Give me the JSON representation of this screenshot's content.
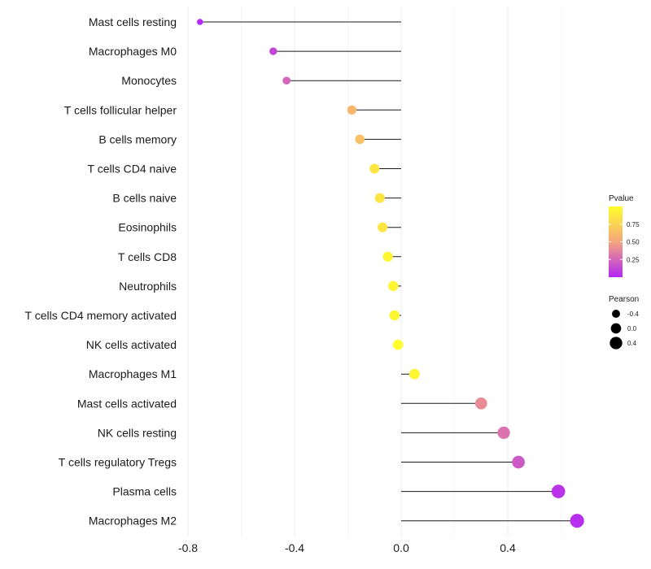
{
  "chart_data": {
    "type": "lollipop",
    "title": "",
    "xlabel": "",
    "ylabel": "",
    "xlim": [
      -0.8,
      0.65
    ],
    "x_ticks": [
      -0.8,
      -0.4,
      0.0,
      0.4
    ],
    "x_tick_labels": [
      "-0.8",
      "-0.4",
      "0.0",
      "0.4"
    ],
    "categories": [
      "Mast cells resting",
      "Macrophages M0",
      "Monocytes",
      "T cells follicular helper",
      "B cells memory",
      "T cells CD4 naive",
      "B cells naive",
      "Eosinophils",
      "T cells CD8",
      "Neutrophils",
      "T cells CD4 memory activated",
      "NK cells activated",
      "Macrophages M1",
      "Mast cells activated",
      "NK cells resting",
      "T cells regulatory  Tregs",
      "Plasma cells",
      "Macrophages M2"
    ],
    "pearson": [
      -0.755,
      -0.48,
      -0.43,
      -0.185,
      -0.155,
      -0.1,
      -0.08,
      -0.07,
      -0.05,
      -0.03,
      -0.025,
      -0.012,
      0.05,
      0.3,
      0.385,
      0.44,
      0.59,
      0.66
    ],
    "pvalue": [
      0.02,
      0.12,
      0.25,
      0.6,
      0.65,
      0.85,
      0.85,
      0.85,
      0.95,
      0.95,
      0.95,
      0.99,
      0.95,
      0.4,
      0.3,
      0.2,
      0.05,
      0.03
    ],
    "legend_pvalue": {
      "title": "Pvalue",
      "ticks": [
        0.75,
        0.5,
        0.25
      ],
      "tick_labels": [
        "0.75",
        "0.50",
        "0.25"
      ],
      "range": [
        0.0,
        1.0
      ],
      "colors": [
        "#b326f5",
        "#f5a67e",
        "#ffff2a"
      ]
    },
    "legend_pearson": {
      "title": "Pearson",
      "values": [
        -0.4,
        0.0,
        0.4
      ],
      "labels": [
        "-0.4",
        "0.0",
        "0.4"
      ]
    },
    "grid": true,
    "legend_position": "right"
  }
}
